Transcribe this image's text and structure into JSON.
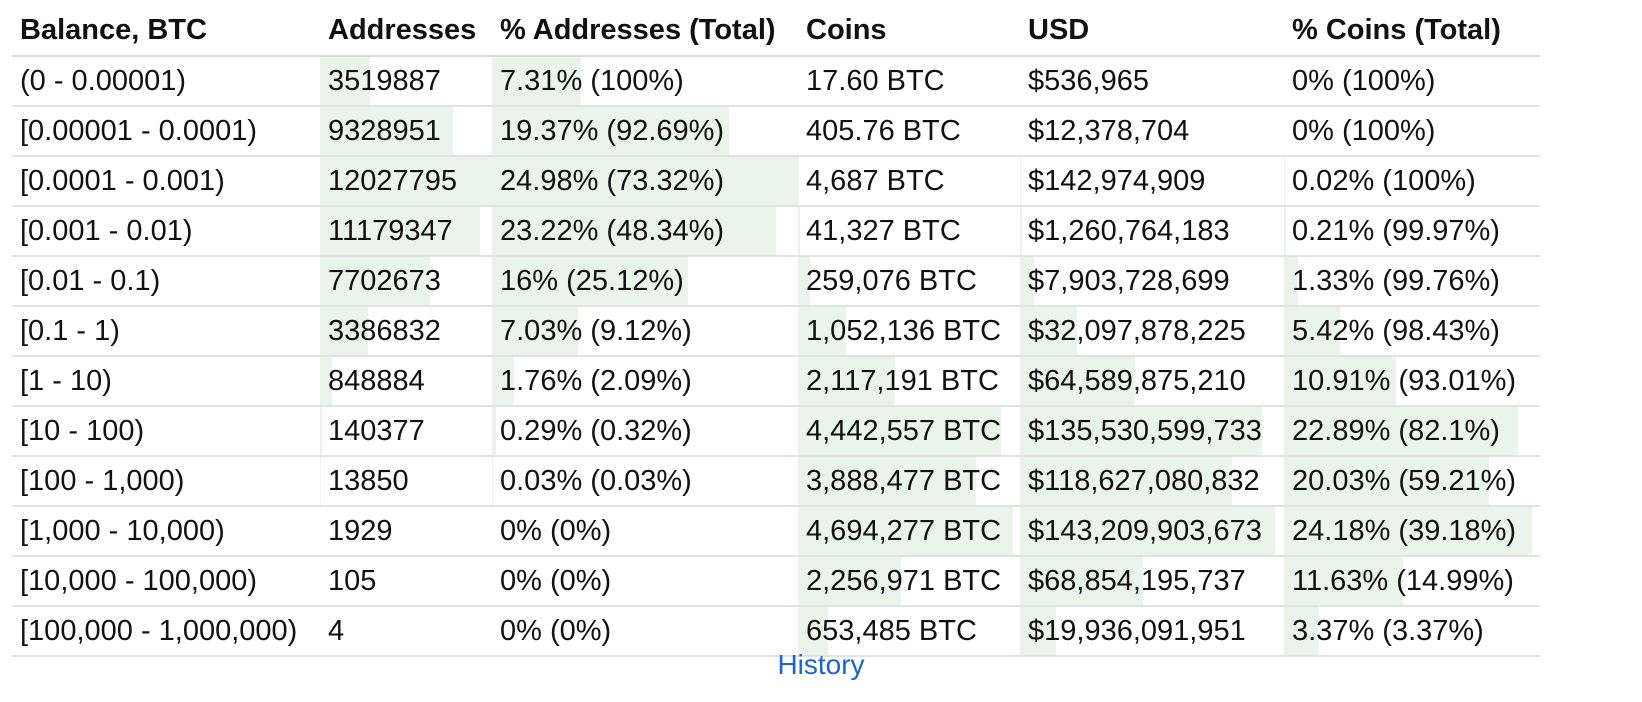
{
  "columns": [
    "Balance, BTC",
    "Addresses",
    "% Addresses (Total)",
    "Coins",
    "USD",
    "% Coins (Total)"
  ],
  "rows": [
    {
      "balance": "(0 - 0.00001)",
      "addresses": "3519887",
      "pct_addresses": "7.31% (100%)",
      "coins": "17.60 BTC",
      "usd": "$536,965",
      "pct_coins": "0% (100%)"
    },
    {
      "balance": "[0.00001 - 0.0001)",
      "addresses": "9328951",
      "pct_addresses": "19.37% (92.69%)",
      "coins": "405.76 BTC",
      "usd": "$12,378,704",
      "pct_coins": "0% (100%)"
    },
    {
      "balance": "[0.0001 - 0.001)",
      "addresses": "12027795",
      "pct_addresses": "24.98% (73.32%)",
      "coins": "4,687 BTC",
      "usd": "$142,974,909",
      "pct_coins": "0.02% (100%)"
    },
    {
      "balance": "[0.001 - 0.01)",
      "addresses": "11179347",
      "pct_addresses": "23.22% (48.34%)",
      "coins": "41,327 BTC",
      "usd": "$1,260,764,183",
      "pct_coins": "0.21% (99.97%)"
    },
    {
      "balance": "[0.01 - 0.1)",
      "addresses": "7702673",
      "pct_addresses": "16% (25.12%)",
      "coins": "259,076 BTC",
      "usd": "$7,903,728,699",
      "pct_coins": "1.33% (99.76%)"
    },
    {
      "balance": "[0.1 - 1)",
      "addresses": "3386832",
      "pct_addresses": "7.03% (9.12%)",
      "coins": "1,052,136 BTC",
      "usd": "$32,097,878,225",
      "pct_coins": "5.42% (98.43%)"
    },
    {
      "balance": "[1 - 10)",
      "addresses": "848884",
      "pct_addresses": "1.76% (2.09%)",
      "coins": "2,117,191 BTC",
      "usd": "$64,589,875,210",
      "pct_coins": "10.91% (93.01%)"
    },
    {
      "balance": "[10 - 100)",
      "addresses": "140377",
      "pct_addresses": "0.29% (0.32%)",
      "coins": "4,442,557 BTC",
      "usd": "$135,530,599,733",
      "pct_coins": "22.89% (82.1%)"
    },
    {
      "balance": "[100 - 1,000)",
      "addresses": "13850",
      "pct_addresses": "0.03% (0.03%)",
      "coins": "3,888,477 BTC",
      "usd": "$118,627,080,832",
      "pct_coins": "20.03% (59.21%)"
    },
    {
      "balance": "[1,000 - 10,000)",
      "addresses": "1929",
      "pct_addresses": "0% (0%)",
      "coins": "4,694,277 BTC",
      "usd": "$143,209,903,673",
      "pct_coins": "24.18% (39.18%)"
    },
    {
      "balance": "[10,000 - 100,000)",
      "addresses": "105",
      "pct_addresses": "0% (0%)",
      "coins": "2,256,971 BTC",
      "usd": "$68,854,195,737",
      "pct_coins": "11.63% (14.99%)"
    },
    {
      "balance": "[100,000 - 1,000,000)",
      "addresses": "4",
      "pct_addresses": "0% (0%)",
      "coins": "653,485 BTC",
      "usd": "$19,936,091,951",
      "pct_coins": "3.37% (3.37%)"
    }
  ],
  "history_link": "History",
  "colors": {
    "bar_fill": "#e9f5eb",
    "link": "#1a66cc",
    "row_border": "#e2e2e2"
  }
}
